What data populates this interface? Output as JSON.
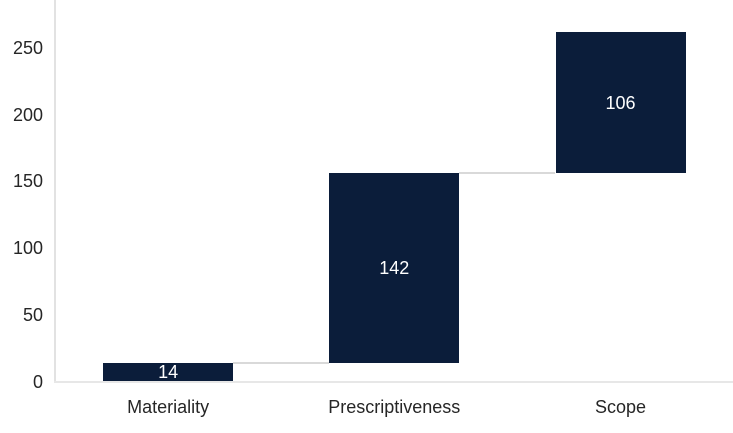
{
  "chart_data": {
    "type": "bar",
    "variant": "waterfall",
    "title": "",
    "xlabel": "",
    "ylabel": "",
    "categories": [
      "Materiality",
      "Prescriptiveness",
      "Scope"
    ],
    "values": [
      14,
      142,
      106
    ],
    "cumulative": [
      14,
      156,
      262
    ],
    "data_labels": [
      "14",
      "142",
      "106"
    ],
    "y_ticks": [
      0,
      50,
      100,
      150,
      200,
      250
    ],
    "ylim_visible": [
      0,
      286
    ],
    "grid": false,
    "legend": false,
    "colors": {
      "bar": "#0b1d3a",
      "bar_label": "#ffffff",
      "axis_line": "#e2e2e2",
      "baseline": "#e7e7e7",
      "connector": "#d9d9d9",
      "text": "#262626"
    }
  }
}
